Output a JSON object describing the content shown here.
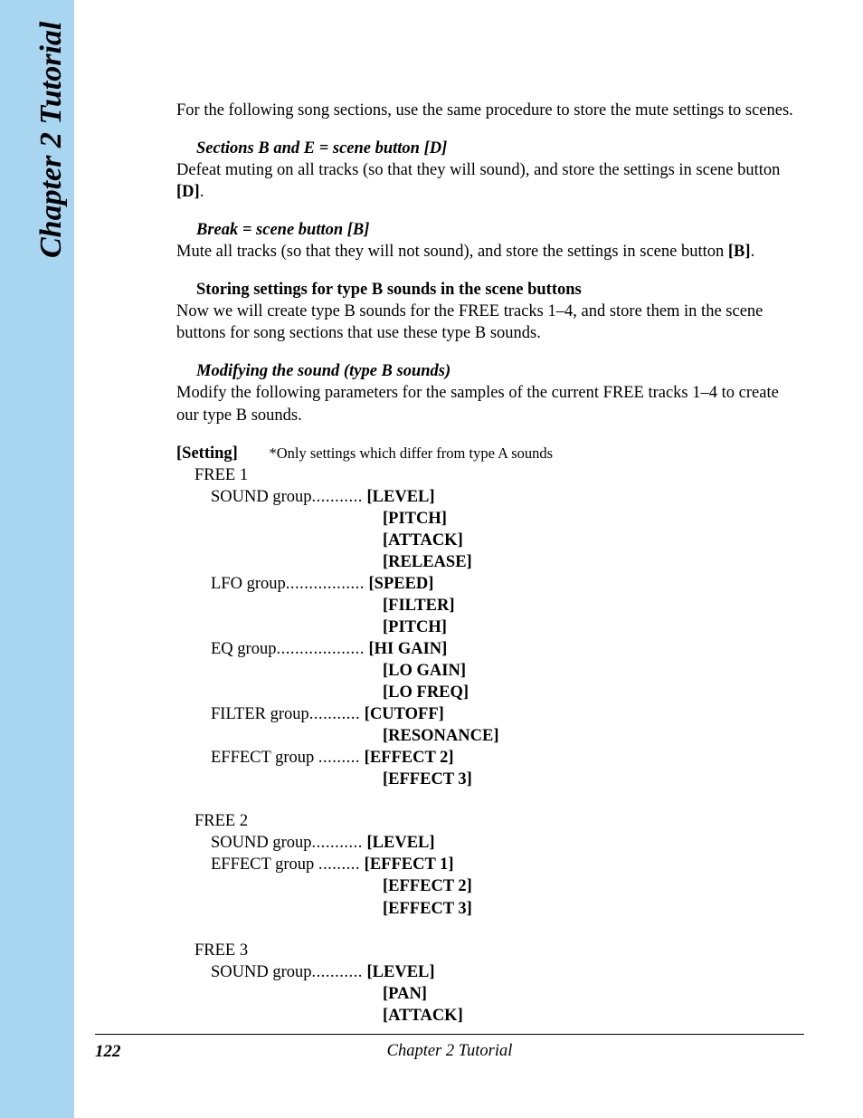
{
  "sidebar": {
    "label": "Chapter 2   Tutorial"
  },
  "intro": "For the following song sections, use the same procedure to store the mute settings to scenes.",
  "sectionBE": {
    "heading": "Sections B and E = scene button [D]",
    "body_a": "Defeat muting on all tracks (so that they will sound), and store the settings in scene button ",
    "body_b": "[D]",
    "body_c": "."
  },
  "break": {
    "heading": "Break = scene button [B]",
    "body_a": "Mute all tracks (so that they will not sound), and store the settings in scene button ",
    "body_b": "[B]",
    "body_c": "."
  },
  "storing": {
    "heading": "Storing settings for type B sounds in the scene buttons",
    "body": "Now we will create type B sounds for the FREE tracks 1–4, and store them in the scene buttons for song sections that use these type B sounds."
  },
  "modifying": {
    "heading": "Modifying the sound (type B sounds)",
    "body": "Modify the following parameters for the samples of the current FREE tracks 1–4 to create our type B sounds."
  },
  "setting": {
    "label": "[Setting]",
    "note": "*Only settings which differ from type A sounds"
  },
  "free1": {
    "title": "FREE 1",
    "g1": "SOUND group",
    "g1d": "...........",
    "g1p1": "[LEVEL]",
    "g1p2": "[PITCH]",
    "g1p3": "[ATTACK]",
    "g1p4": "[RELEASE]",
    "g2": "LFO group",
    "g2d": ".................",
    "g2p1": "[SPEED]",
    "g2p2": "[FILTER]",
    "g2p3": "[PITCH]",
    "g3": "EQ group",
    "g3d": "...................",
    "g3p1": "[HI GAIN]",
    "g3p2": "[LO GAIN]",
    "g3p3": "[LO FREQ]",
    "g4": "FILTER group",
    "g4d": "...........",
    "g4p1": "[CUTOFF]",
    "g4p2": "[RESONANCE]",
    "g5": "EFFECT group ",
    "g5d": ".........",
    "g5p1": "[EFFECT 2]",
    "g5p2": "[EFFECT 3]"
  },
  "free2": {
    "title": "FREE 2",
    "g1": "SOUND group",
    "g1d": "...........",
    "g1p1": "[LEVEL]",
    "g2": "EFFECT group ",
    "g2d": ".........",
    "g2p1": "[EFFECT 1]",
    "g2p2": "[EFFECT 2]",
    "g2p3": "[EFFECT 3]"
  },
  "free3": {
    "title": "FREE 3",
    "g1": "SOUND group",
    "g1d": "...........",
    "g1p1": "[LEVEL]",
    "g1p2": "[PAN]",
    "g1p3": "[ATTACK]"
  },
  "footer": {
    "page": "122",
    "title": "Chapter 2   Tutorial"
  }
}
